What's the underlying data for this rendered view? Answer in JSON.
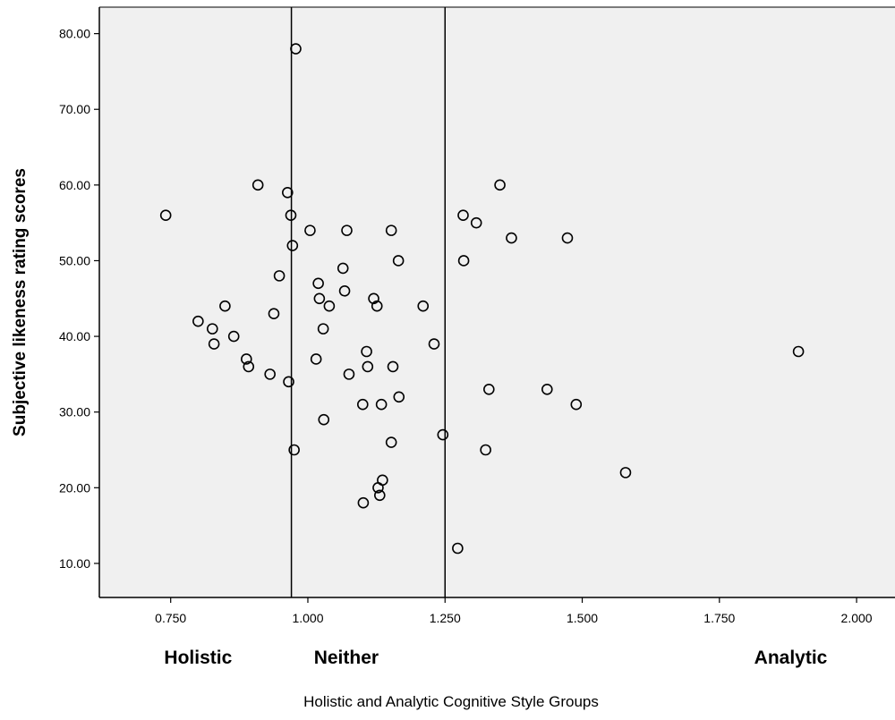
{
  "chart_data": {
    "type": "scatter",
    "ylabel": "Subjective likeness rating scores",
    "xlabel": "Holistic and Analytic Cognitive Style Groups",
    "xlim": [
      0.62,
      2.07
    ],
    "ylim": [
      5.5,
      83.5
    ],
    "x_ticks": [
      0.75,
      1.0,
      1.25,
      1.5,
      1.75,
      2.0
    ],
    "x_tick_labels": [
      "0.750",
      "1.000",
      "1.250",
      "1.500",
      "1.750",
      "2.000"
    ],
    "y_ticks": [
      10,
      20,
      30,
      40,
      50,
      60,
      70,
      80
    ],
    "y_tick_labels": [
      "10.00",
      "20.00",
      "30.00",
      "40.00",
      "50.00",
      "60.00",
      "70.00",
      "80.00"
    ],
    "reference_lines_x": [
      0.97,
      1.25
    ],
    "group_labels": [
      {
        "text": "Holistic",
        "x": 0.8
      },
      {
        "text": "Neither",
        "x": 1.07
      },
      {
        "text": "Analytic",
        "x": 1.88
      }
    ],
    "background": "#f0f0f0",
    "grid": false,
    "points": [
      {
        "x": 0.741,
        "y": 56
      },
      {
        "x": 0.8,
        "y": 42
      },
      {
        "x": 0.826,
        "y": 41
      },
      {
        "x": 0.829,
        "y": 39
      },
      {
        "x": 0.849,
        "y": 44
      },
      {
        "x": 0.865,
        "y": 40
      },
      {
        "x": 0.888,
        "y": 37
      },
      {
        "x": 0.892,
        "y": 36
      },
      {
        "x": 0.909,
        "y": 60
      },
      {
        "x": 0.931,
        "y": 35
      },
      {
        "x": 0.938,
        "y": 43
      },
      {
        "x": 0.948,
        "y": 48
      },
      {
        "x": 0.963,
        "y": 59
      },
      {
        "x": 0.965,
        "y": 34
      },
      {
        "x": 0.969,
        "y": 56
      },
      {
        "x": 0.972,
        "y": 52
      },
      {
        "x": 0.975,
        "y": 25
      },
      {
        "x": 0.978,
        "y": 78
      },
      {
        "x": 1.004,
        "y": 54
      },
      {
        "x": 1.015,
        "y": 37
      },
      {
        "x": 1.019,
        "y": 47
      },
      {
        "x": 1.021,
        "y": 45
      },
      {
        "x": 1.028,
        "y": 41
      },
      {
        "x": 1.029,
        "y": 29
      },
      {
        "x": 1.039,
        "y": 44
      },
      {
        "x": 1.064,
        "y": 49
      },
      {
        "x": 1.067,
        "y": 46
      },
      {
        "x": 1.071,
        "y": 54
      },
      {
        "x": 1.075,
        "y": 35
      },
      {
        "x": 1.1,
        "y": 31
      },
      {
        "x": 1.101,
        "y": 18
      },
      {
        "x": 1.107,
        "y": 38
      },
      {
        "x": 1.109,
        "y": 36
      },
      {
        "x": 1.12,
        "y": 45
      },
      {
        "x": 1.126,
        "y": 44
      },
      {
        "x": 1.128,
        "y": 20
      },
      {
        "x": 1.131,
        "y": 19
      },
      {
        "x": 1.134,
        "y": 31
      },
      {
        "x": 1.136,
        "y": 21
      },
      {
        "x": 1.152,
        "y": 54
      },
      {
        "x": 1.152,
        "y": 26
      },
      {
        "x": 1.155,
        "y": 36
      },
      {
        "x": 1.165,
        "y": 50
      },
      {
        "x": 1.166,
        "y": 32
      },
      {
        "x": 1.21,
        "y": 44
      },
      {
        "x": 1.23,
        "y": 39
      },
      {
        "x": 1.246,
        "y": 27
      },
      {
        "x": 1.273,
        "y": 12
      },
      {
        "x": 1.283,
        "y": 56
      },
      {
        "x": 1.284,
        "y": 50
      },
      {
        "x": 1.307,
        "y": 55
      },
      {
        "x": 1.324,
        "y": 25
      },
      {
        "x": 1.33,
        "y": 33
      },
      {
        "x": 1.35,
        "y": 60
      },
      {
        "x": 1.371,
        "y": 53
      },
      {
        "x": 1.436,
        "y": 33
      },
      {
        "x": 1.473,
        "y": 53
      },
      {
        "x": 1.489,
        "y": 31
      },
      {
        "x": 1.579,
        "y": 22
      },
      {
        "x": 1.894,
        "y": 38
      }
    ]
  }
}
